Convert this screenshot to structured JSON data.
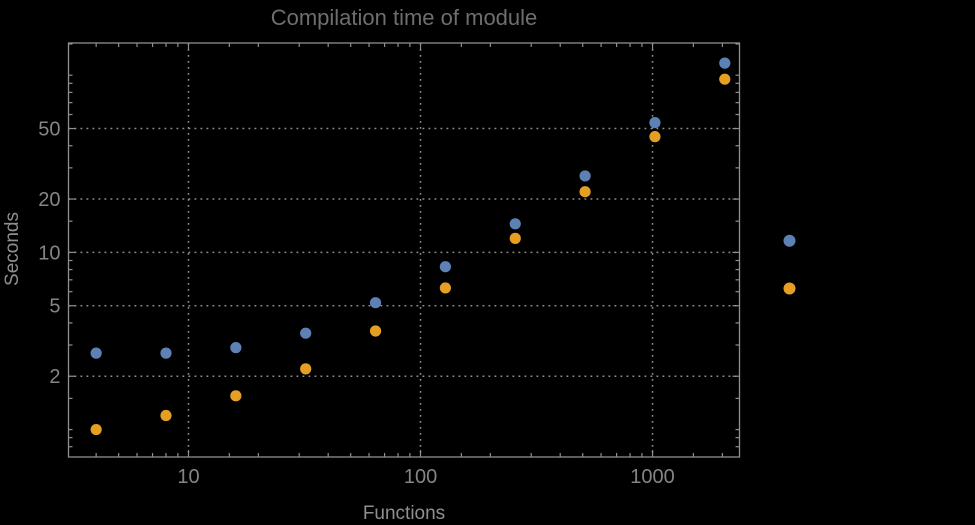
{
  "background_color": "#000000",
  "chart_data": {
    "type": "scatter",
    "title": "Compilation time of module",
    "xlabel": "Functions",
    "ylabel": "Seconds",
    "x_scale": "log",
    "y_scale": "log",
    "xlim": [
      3.04,
      2370
    ],
    "ylim": [
      0.7,
      152
    ],
    "grid": "dotted gridlines at major ticks, both axes",
    "x": [
      4,
      8,
      16,
      32,
      64,
      128,
      256,
      512,
      1024,
      2048
    ],
    "series": [
      {
        "name": "series-1-blue",
        "color": "#5E81B5",
        "values": [
          2.7,
          2.7,
          2.9,
          3.5,
          5.2,
          8.3,
          14.5,
          27,
          54,
          117
        ]
      },
      {
        "name": "series-2-orange",
        "color": "#E5A024",
        "values": [
          1.0,
          1.2,
          1.55,
          2.2,
          3.6,
          6.3,
          12,
          22,
          45,
          95
        ]
      }
    ],
    "x_ticks": {
      "major": [
        10,
        100,
        1000
      ],
      "major_labels": [
        "10",
        "100",
        "1000"
      ],
      "minor": [
        4,
        5,
        6,
        7,
        8,
        9,
        15,
        20,
        30,
        40,
        50,
        60,
        70,
        80,
        90,
        150,
        200,
        300,
        400,
        500,
        600,
        700,
        800,
        900,
        1500,
        2000
      ]
    },
    "y_ticks": {
      "major": [
        2,
        5,
        10,
        20,
        50
      ],
      "major_labels": [
        "2",
        "5",
        "10",
        "20",
        "50"
      ],
      "minor": [
        0.8,
        0.9,
        1,
        1.5,
        3,
        4,
        6,
        7,
        8,
        9,
        15,
        30,
        40,
        60,
        70,
        80,
        90,
        100,
        150
      ]
    },
    "legend": {
      "position": "right-of-plot",
      "markers": [
        {
          "series": "series-1-blue",
          "color": "#5E81B5",
          "label": ""
        },
        {
          "series": "series-2-orange",
          "color": "#E5A024",
          "label": ""
        }
      ],
      "note": "marker dots only; no visible label text"
    },
    "colors": {
      "frame": "#8f8f8f",
      "grid": "#8f8f8f",
      "tick_label": "#858585",
      "axis_label": "#8f8f8f",
      "title": "#6e6e6e",
      "background": "#000000"
    }
  }
}
